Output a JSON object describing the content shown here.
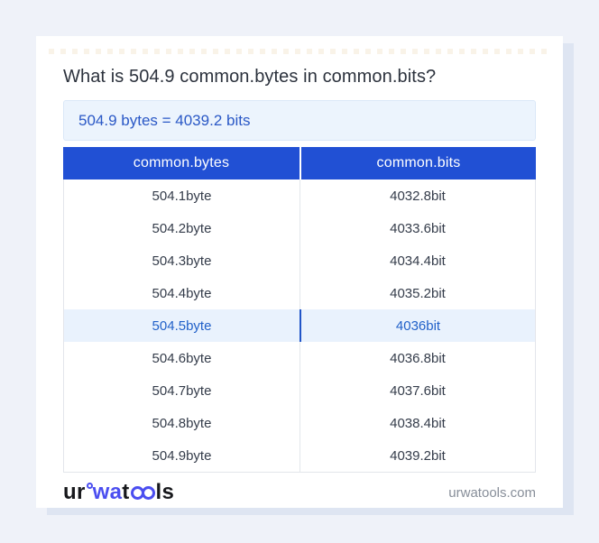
{
  "page": {
    "title": "What is 504.9 common.bytes in common.bits?",
    "result_text": "504.9 bytes = 4039.2 bits"
  },
  "table": {
    "headers": [
      "common.bytes",
      "common.bits"
    ],
    "highlight_row_index": 4,
    "rows": [
      {
        "from": "504.1byte",
        "to": "4032.8bit"
      },
      {
        "from": "504.2byte",
        "to": "4033.6bit"
      },
      {
        "from": "504.3byte",
        "to": "4034.4bit"
      },
      {
        "from": "504.4byte",
        "to": "4035.2bit"
      },
      {
        "from": "504.5byte",
        "to": "4036bit"
      },
      {
        "from": "504.6byte",
        "to": "4036.8bit"
      },
      {
        "from": "504.7byte",
        "to": "4037.6bit"
      },
      {
        "from": "504.8byte",
        "to": "4038.4bit"
      },
      {
        "from": "504.9byte",
        "to": "4039.2bit"
      }
    ]
  },
  "footer": {
    "logo": {
      "ur": "ur",
      "wa": "wa",
      "t": "t",
      "ls": "ls"
    },
    "domain": "urwatools.com"
  },
  "colors": {
    "page_background": "#eff2f9",
    "card_background": "#ffffff",
    "header_blue": "#2150d4",
    "result_box_background": "#ecf4fd",
    "result_text_blue": "#2a58c6",
    "highlight_row_background": "#e9f2fd",
    "highlight_text_blue": "#2161c9",
    "row_text": "#343c4a",
    "table_border": "#e3e6eb",
    "logo_blue": "#4b4ef0",
    "domain_gray": "#878e99"
  }
}
